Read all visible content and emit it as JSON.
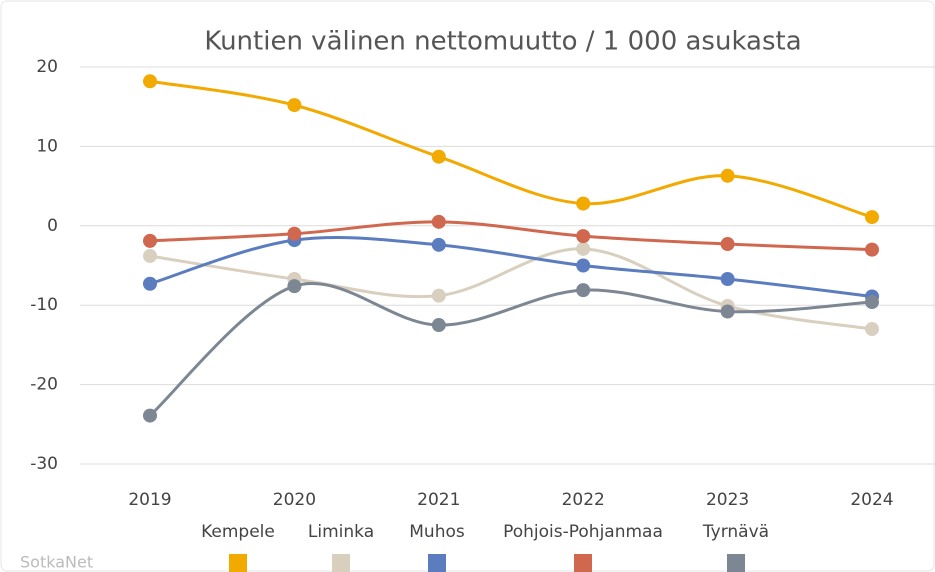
{
  "chart_data": {
    "type": "line",
    "title": "Kuntien välinen nettomuutto / 1 000 asukasta",
    "credit": "SotkaNet",
    "categories": [
      "2019",
      "2020",
      "2021",
      "2022",
      "2023",
      "2024"
    ],
    "ylim": [
      -30,
      20
    ],
    "yticks": [
      -30,
      -20,
      -10,
      0,
      10,
      20
    ],
    "grid": true,
    "smooth": true,
    "legend": "bottom",
    "series": [
      {
        "name": "Kempele",
        "color": "#f2a900",
        "values": [
          18.2,
          15.2,
          8.7,
          2.8,
          6.3,
          1.1
        ]
      },
      {
        "name": "Liminka",
        "color": "#d9cfbf",
        "values": [
          -3.8,
          -6.7,
          -8.8,
          -2.9,
          -10.1,
          -13.0
        ]
      },
      {
        "name": "Muhos",
        "color": "#5b7dbf",
        "values": [
          -7.3,
          -1.8,
          -2.4,
          -5.0,
          -6.7,
          -8.9
        ]
      },
      {
        "name": "Pohjois-Pohjanmaa",
        "color": "#d0674f",
        "values": [
          -1.9,
          -1.0,
          0.5,
          -1.3,
          -2.3,
          -3.0
        ]
      },
      {
        "name": "Tyrnävä",
        "color": "#7d8794",
        "values": [
          -23.9,
          -7.6,
          -12.5,
          -8.1,
          -10.8,
          -9.6
        ]
      }
    ]
  }
}
